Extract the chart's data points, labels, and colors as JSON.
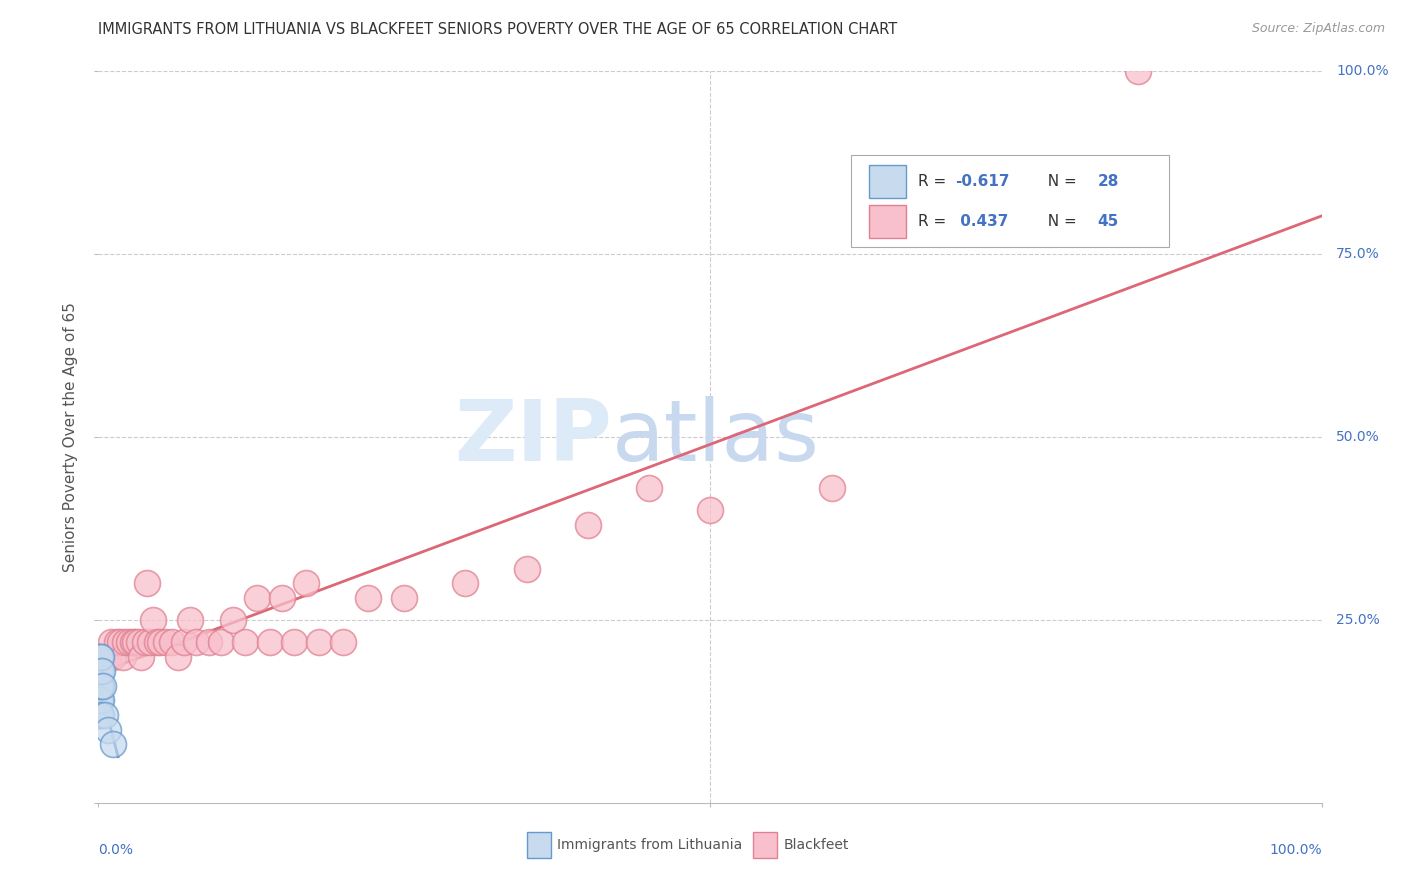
{
  "title": "IMMIGRANTS FROM LITHUANIA VS BLACKFEET SENIORS POVERTY OVER THE AGE OF 65 CORRELATION CHART",
  "source": "Source: ZipAtlas.com",
  "ylabel": "Seniors Poverty Over the Age of 65",
  "legend_label1": "Immigrants from Lithuania",
  "legend_label2": "Blackfeet",
  "r1": -0.617,
  "n1": 28,
  "r2": 0.437,
  "n2": 45,
  "color_blue_fill": "#c8daee",
  "color_pink_fill": "#f8c0cc",
  "color_blue_edge": "#6699cc",
  "color_pink_edge": "#e08090",
  "color_blue_line": "#4477bb",
  "color_pink_line": "#dd6677",
  "grid_color": "#cccccc",
  "background_color": "#ffffff",
  "pink_x": [
    0.005,
    0.008,
    0.01,
    0.012,
    0.015,
    0.018,
    0.02,
    0.022,
    0.025,
    0.028,
    0.03,
    0.033,
    0.035,
    0.038,
    0.04,
    0.042,
    0.045,
    0.048,
    0.05,
    0.055,
    0.06,
    0.065,
    0.07,
    0.075,
    0.08,
    0.09,
    0.1,
    0.11,
    0.12,
    0.13,
    0.14,
    0.15,
    0.16,
    0.17,
    0.18,
    0.2,
    0.22,
    0.25,
    0.3,
    0.35,
    0.4,
    0.45,
    0.5,
    0.6,
    0.85
  ],
  "pink_y": [
    0.2,
    0.2,
    0.22,
    0.2,
    0.22,
    0.22,
    0.2,
    0.22,
    0.22,
    0.22,
    0.22,
    0.22,
    0.2,
    0.22,
    0.3,
    0.22,
    0.25,
    0.22,
    0.22,
    0.22,
    0.22,
    0.2,
    0.22,
    0.25,
    0.22,
    0.22,
    0.22,
    0.25,
    0.22,
    0.28,
    0.22,
    0.28,
    0.22,
    0.3,
    0.22,
    0.22,
    0.28,
    0.28,
    0.3,
    0.32,
    0.38,
    0.43,
    0.4,
    0.43,
    1.0
  ],
  "blue_x": [
    0.0002,
    0.0003,
    0.0004,
    0.0005,
    0.0005,
    0.0006,
    0.0007,
    0.0007,
    0.0008,
    0.0009,
    0.001,
    0.001,
    0.001,
    0.0012,
    0.0013,
    0.0014,
    0.0015,
    0.0016,
    0.0018,
    0.002,
    0.002,
    0.0022,
    0.0025,
    0.003,
    0.004,
    0.005,
    0.008,
    0.012
  ],
  "blue_y": [
    0.18,
    0.16,
    0.14,
    0.16,
    0.12,
    0.14,
    0.18,
    0.12,
    0.16,
    0.14,
    0.2,
    0.18,
    0.14,
    0.16,
    0.12,
    0.18,
    0.2,
    0.16,
    0.14,
    0.18,
    0.12,
    0.16,
    0.2,
    0.18,
    0.16,
    0.12,
    0.1,
    0.08
  ]
}
